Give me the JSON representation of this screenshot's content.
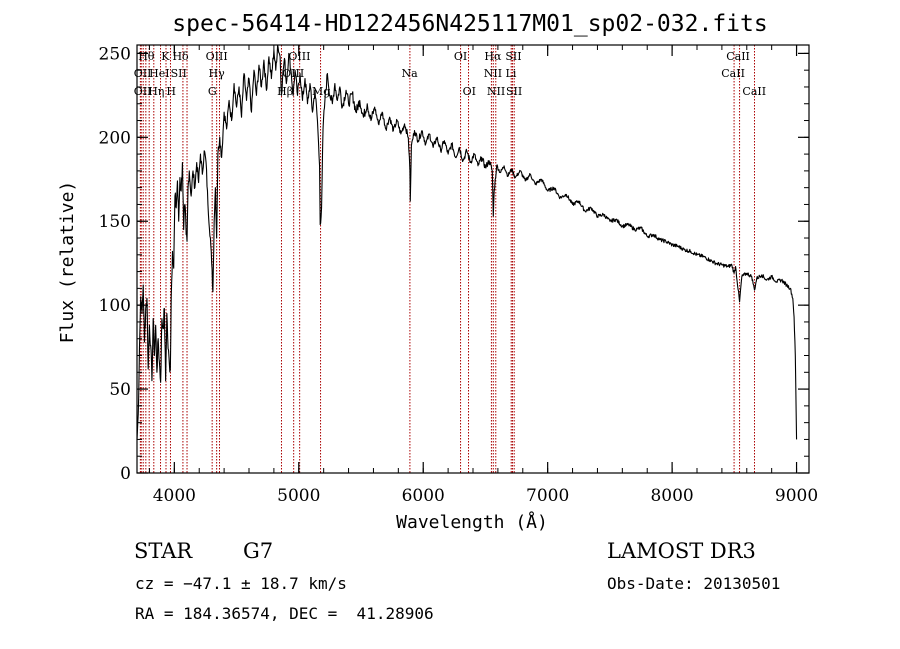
{
  "chart_data": {
    "type": "line",
    "title": "spec-56414-HD122456N425117M01_sp02-032.fits",
    "xlabel": "Wavelength (Å)",
    "ylabel": "Flux (relative)",
    "xlim": [
      3700,
      9100
    ],
    "ylim": [
      0,
      255
    ],
    "xticks": [
      4000,
      5000,
      6000,
      7000,
      8000,
      9000
    ],
    "yticks": [
      0,
      50,
      100,
      150,
      200,
      250
    ],
    "x_minor_step": 200,
    "y_minor_step": 10,
    "grid": false,
    "series": [
      {
        "name": "flux",
        "color": "#000000",
        "points": [
          [
            3700,
            20
          ],
          [
            3710,
            35
          ],
          [
            3720,
            75
          ],
          [
            3730,
            105
          ],
          [
            3740,
            95
          ],
          [
            3750,
            112
          ],
          [
            3760,
            78
          ],
          [
            3770,
            98
          ],
          [
            3780,
            104
          ],
          [
            3790,
            62
          ],
          [
            3800,
            88
          ],
          [
            3810,
            76
          ],
          [
            3820,
            55
          ],
          [
            3830,
            92
          ],
          [
            3840,
            70
          ],
          [
            3850,
            88
          ],
          [
            3860,
            60
          ],
          [
            3870,
            80
          ],
          [
            3880,
            66
          ],
          [
            3890,
            54
          ],
          [
            3900,
            92
          ],
          [
            3910,
            86
          ],
          [
            3920,
            98
          ],
          [
            3930,
            55
          ],
          [
            3940,
            95
          ],
          [
            3950,
            74
          ],
          [
            3960,
            65
          ],
          [
            3968,
            62
          ],
          [
            3975,
            105
          ],
          [
            3985,
            132
          ],
          [
            3995,
            122
          ],
          [
            4005,
            165
          ],
          [
            4015,
            158
          ],
          [
            4025,
            174
          ],
          [
            4035,
            150
          ],
          [
            4045,
            176
          ],
          [
            4055,
            168
          ],
          [
            4065,
            185
          ],
          [
            4075,
            145
          ],
          [
            4085,
            160
          ],
          [
            4095,
            142
          ],
          [
            4102,
            138
          ],
          [
            4110,
            170
          ],
          [
            4120,
            180
          ],
          [
            4135,
            165
          ],
          [
            4150,
            180
          ],
          [
            4165,
            170
          ],
          [
            4180,
            185
          ],
          [
            4195,
            173
          ],
          [
            4210,
            190
          ],
          [
            4225,
            178
          ],
          [
            4240,
            192
          ],
          [
            4255,
            185
          ],
          [
            4270,
            160
          ],
          [
            4290,
            140
          ],
          [
            4300,
            125
          ],
          [
            4310,
            108
          ],
          [
            4320,
            150
          ],
          [
            4330,
            170
          ],
          [
            4340,
            140
          ],
          [
            4350,
            190
          ],
          [
            4365,
            200
          ],
          [
            4380,
            188
          ],
          [
            4400,
            215
          ],
          [
            4420,
            205
          ],
          [
            4440,
            222
          ],
          [
            4460,
            210
          ],
          [
            4480,
            232
          ],
          [
            4500,
            218
          ],
          [
            4520,
            230
          ],
          [
            4540,
            212
          ],
          [
            4560,
            238
          ],
          [
            4580,
            222
          ],
          [
            4600,
            235
          ],
          [
            4620,
            215
          ],
          [
            4640,
            240
          ],
          [
            4660,
            225
          ],
          [
            4680,
            243
          ],
          [
            4700,
            230
          ],
          [
            4720,
            246
          ],
          [
            4740,
            228
          ],
          [
            4760,
            248
          ],
          [
            4780,
            235
          ],
          [
            4800,
            252
          ],
          [
            4815,
            240
          ],
          [
            4830,
            255
          ],
          [
            4850,
            248
          ],
          [
            4861,
            225
          ],
          [
            4870,
            236
          ],
          [
            4885,
            247
          ],
          [
            4900,
            232
          ],
          [
            4920,
            250
          ],
          [
            4940,
            238
          ],
          [
            4955,
            225
          ],
          [
            4970,
            240
          ],
          [
            4990,
            225
          ],
          [
            5010,
            238
          ],
          [
            5030,
            222
          ],
          [
            5050,
            235
          ],
          [
            5070,
            220
          ],
          [
            5090,
            232
          ],
          [
            5110,
            215
          ],
          [
            5130,
            228
          ],
          [
            5150,
            210
          ],
          [
            5167,
            183
          ],
          [
            5172,
            148
          ],
          [
            5183,
            158
          ],
          [
            5195,
            205
          ],
          [
            5210,
            222
          ],
          [
            5230,
            238
          ],
          [
            5250,
            225
          ],
          [
            5270,
            220
          ],
          [
            5290,
            232
          ],
          [
            5310,
            222
          ],
          [
            5330,
            230
          ],
          [
            5350,
            218
          ],
          [
            5380,
            228
          ],
          [
            5400,
            220
          ],
          [
            5430,
            226
          ],
          [
            5460,
            215
          ],
          [
            5490,
            222
          ],
          [
            5520,
            212
          ],
          [
            5550,
            220
          ],
          [
            5580,
            210
          ],
          [
            5610,
            218
          ],
          [
            5640,
            208
          ],
          [
            5670,
            215
          ],
          [
            5700,
            205
          ],
          [
            5730,
            212
          ],
          [
            5760,
            204
          ],
          [
            5790,
            210
          ],
          [
            5820,
            202
          ],
          [
            5850,
            208
          ],
          [
            5880,
            200
          ],
          [
            5893,
            180
          ],
          [
            5896,
            162
          ],
          [
            5905,
            195
          ],
          [
            5930,
            204
          ],
          [
            5960,
            198
          ],
          [
            5990,
            204
          ],
          [
            6020,
            196
          ],
          [
            6050,
            202
          ],
          [
            6080,
            194
          ],
          [
            6110,
            200
          ],
          [
            6140,
            192
          ],
          [
            6170,
            198
          ],
          [
            6200,
            190
          ],
          [
            6230,
            196
          ],
          [
            6260,
            188
          ],
          [
            6290,
            194
          ],
          [
            6320,
            186
          ],
          [
            6350,
            192
          ],
          [
            6380,
            185
          ],
          [
            6410,
            190
          ],
          [
            6440,
            183
          ],
          [
            6470,
            188
          ],
          [
            6500,
            182
          ],
          [
            6530,
            186
          ],
          [
            6555,
            180
          ],
          [
            6563,
            153
          ],
          [
            6570,
            168
          ],
          [
            6590,
            183
          ],
          [
            6620,
            179
          ],
          [
            6650,
            183
          ],
          [
            6680,
            177
          ],
          [
            6710,
            181
          ],
          [
            6740,
            176
          ],
          [
            6780,
            180
          ],
          [
            6820,
            174
          ],
          [
            6860,
            178
          ],
          [
            6900,
            172
          ],
          [
            6950,
            175
          ],
          [
            7000,
            168
          ],
          [
            7050,
            170
          ],
          [
            7100,
            164
          ],
          [
            7150,
            166
          ],
          [
            7200,
            160
          ],
          [
            7250,
            162
          ],
          [
            7300,
            156
          ],
          [
            7350,
            158
          ],
          [
            7400,
            153
          ],
          [
            7450,
            154
          ],
          [
            7500,
            150
          ],
          [
            7550,
            151
          ],
          [
            7600,
            147
          ],
          [
            7650,
            148
          ],
          [
            7700,
            145
          ],
          [
            7750,
            146
          ],
          [
            7800,
            141
          ],
          [
            7850,
            142
          ],
          [
            7900,
            139
          ],
          [
            7950,
            138
          ],
          [
            8000,
            136
          ],
          [
            8050,
            135
          ],
          [
            8100,
            133
          ],
          [
            8150,
            132
          ],
          [
            8200,
            130
          ],
          [
            8250,
            129
          ],
          [
            8300,
            127
          ],
          [
            8350,
            125
          ],
          [
            8400,
            124
          ],
          [
            8450,
            123
          ],
          [
            8480,
            124
          ],
          [
            8498,
            119
          ],
          [
            8510,
            123
          ],
          [
            8542,
            102
          ],
          [
            8560,
            117
          ],
          [
            8600,
            119
          ],
          [
            8640,
            117
          ],
          [
            8662,
            109
          ],
          [
            8680,
            116
          ],
          [
            8720,
            118
          ],
          [
            8760,
            115
          ],
          [
            8800,
            117
          ],
          [
            8840,
            114
          ],
          [
            8880,
            115
          ],
          [
            8920,
            112
          ],
          [
            8950,
            110
          ],
          [
            8970,
            104
          ],
          [
            8980,
            93
          ],
          [
            8990,
            70
          ],
          [
            9000,
            20
          ]
        ]
      }
    ],
    "lines": [
      {
        "wl": 3727,
        "labels": [],
        "color": "#aa0000"
      },
      {
        "wl": 3734,
        "labels": [],
        "color": "#aa0000"
      },
      {
        "wl": 3750,
        "labels": [],
        "color": "#aa0000"
      },
      {
        "wl": 3771,
        "labels": [],
        "color": "#aa0000"
      },
      {
        "wl": 3798,
        "labels": [],
        "color": "#aa0000"
      },
      {
        "wl": 3835,
        "labels": [],
        "color": "#aa0000"
      },
      {
        "wl": 3889,
        "labels": [],
        "color": "#aa0000"
      },
      {
        "wl": 3933,
        "labels": [],
        "color": "#aa0000"
      },
      {
        "wl": 3969,
        "labels": [],
        "color": "#aa0000"
      },
      {
        "wl": 4069,
        "labels": [],
        "color": "#aa0000"
      },
      {
        "wl": 4102,
        "labels": [],
        "color": "#aa0000"
      },
      {
        "wl": 4304,
        "labels": [],
        "color": "#aa0000"
      },
      {
        "wl": 4340,
        "labels": [],
        "color": "#aa0000"
      },
      {
        "wl": 4363,
        "labels": [],
        "color": "#aa0000"
      },
      {
        "wl": 4861,
        "labels": [],
        "color": "#aa0000"
      },
      {
        "wl": 4959,
        "labels": [],
        "color": "#aa0000"
      },
      {
        "wl": 5007,
        "labels": [],
        "color": "#aa0000"
      },
      {
        "wl": 5175,
        "labels": [],
        "color": "#aa0000"
      },
      {
        "wl": 5893,
        "labels": [],
        "color": "#aa0000"
      },
      {
        "wl": 6300,
        "labels": [],
        "color": "#aa0000"
      },
      {
        "wl": 6364,
        "labels": [],
        "color": "#aa0000"
      },
      {
        "wl": 6548,
        "labels": [],
        "color": "#aa0000"
      },
      {
        "wl": 6563,
        "labels": [],
        "color": "#aa0000"
      },
      {
        "wl": 6583,
        "labels": [],
        "color": "#aa0000"
      },
      {
        "wl": 6707,
        "labels": [],
        "color": "#aa0000"
      },
      {
        "wl": 6717,
        "labels": [],
        "color": "#aa0000"
      },
      {
        "wl": 6731,
        "labels": [],
        "color": "#aa0000"
      },
      {
        "wl": 8498,
        "labels": [],
        "color": "#aa0000"
      },
      {
        "wl": 8542,
        "labels": [],
        "color": "#aa0000"
      },
      {
        "wl": 8662,
        "labels": [],
        "color": "#aa0000"
      }
    ],
    "annotations": [
      {
        "text": "Hθ",
        "wl": 3775,
        "row": 0
      },
      {
        "text": "K",
        "wl": 3928,
        "row": 0
      },
      {
        "text": "Hδ",
        "wl": 4050,
        "row": 0
      },
      {
        "text": "OII",
        "wl": 3745,
        "row": 1
      },
      {
        "text": "HeI",
        "wl": 3880,
        "row": 1
      },
      {
        "text": "SII",
        "wl": 4035,
        "row": 1
      },
      {
        "text": "OII",
        "wl": 3745,
        "row": 2
      },
      {
        "text": "Hη",
        "wl": 3855,
        "row": 2
      },
      {
        "text": "H",
        "wl": 3975,
        "row": 2
      },
      {
        "text": "OIII",
        "wl": 4340,
        "row": 0
      },
      {
        "text": "Hγ",
        "wl": 4340,
        "row": 1
      },
      {
        "text": "G",
        "wl": 4305,
        "row": 2
      },
      {
        "text": "OIII",
        "wl": 5005,
        "row": 0
      },
      {
        "text": "OIII",
        "wl": 4955,
        "row": 1
      },
      {
        "text": "Hβ",
        "wl": 4890,
        "row": 2
      },
      {
        "text": "Mg",
        "wl": 5180,
        "row": 2
      },
      {
        "text": "Na",
        "wl": 5890,
        "row": 1
      },
      {
        "text": "OI",
        "wl": 6300,
        "row": 0
      },
      {
        "text": "OI",
        "wl": 6370,
        "row": 2
      },
      {
        "text": "Hα",
        "wl": 6560,
        "row": 0
      },
      {
        "text": "SII",
        "wl": 6725,
        "row": 0
      },
      {
        "text": "NII",
        "wl": 6560,
        "row": 1
      },
      {
        "text": "Li",
        "wl": 6705,
        "row": 1
      },
      {
        "text": "NII",
        "wl": 6585,
        "row": 2
      },
      {
        "text": "SII",
        "wl": 6730,
        "row": 2
      },
      {
        "text": "CaII",
        "wl": 8530,
        "row": 0
      },
      {
        "text": "CaII",
        "wl": 8490,
        "row": 1
      },
      {
        "text": "CaII",
        "wl": 8660,
        "row": 2
      }
    ]
  },
  "info": {
    "object_class": "STAR",
    "subclass": "G7",
    "survey": "LAMOST DR3",
    "cz": "cz = −47.1 ± 18.7 km/s",
    "obs_date": "Obs-Date: 20130501",
    "coords": "RA = 184.36574, DEC =  41.28906"
  }
}
